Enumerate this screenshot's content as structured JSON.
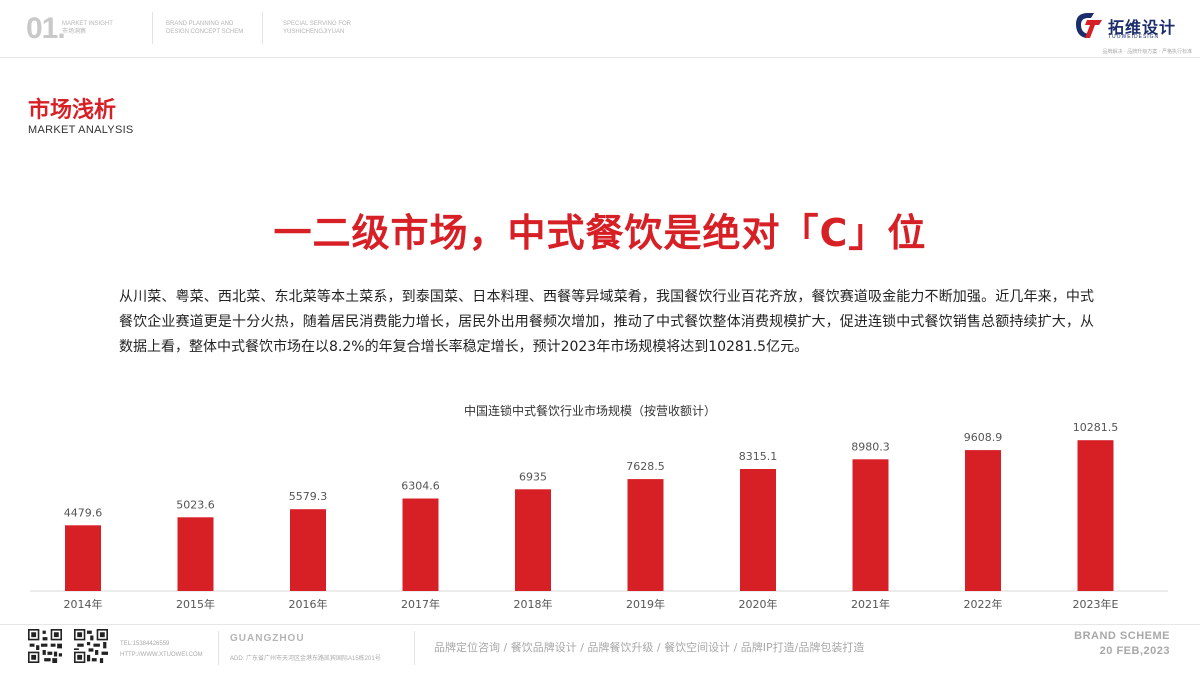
{
  "header": {
    "page_number": "01.",
    "cells": [
      {
        "line1": "MARKET INSIGHT",
        "line2": "市场洞察"
      },
      {
        "line1": "BRAND PLANNING AND",
        "line2": "DESIGN CONCEPT SCHEM"
      },
      {
        "line1": "SPECIAL SERVING FOR",
        "line2": "YUSHICHENGJIYUAN"
      }
    ],
    "logo": {
      "name": "拓维设计",
      "sub": "TUOWEIDESIGN",
      "slogan": "品牌解决 · 品牌升级方案 · 严格执行标准"
    }
  },
  "section": {
    "title": "市场浅析",
    "subtitle": "MARKET ANALYSIS"
  },
  "headline": "一二级市场，中式餐饮是绝对「C」位",
  "body_text": "从川菜、粤菜、西北菜、东北菜等本土菜系，到泰国菜、日本料理、西餐等异域菜肴，我国餐饮行业百花齐放，餐饮赛道吸金能力不断加强。近几年来，中式餐饮企业赛道更是十分火热，随着居民消费能力增长，居民外出用餐频次增加，推动了中式餐饮整体消费规模扩大，促进连锁中式餐饮销售总额持续扩大，从数据上看，整体中式餐饮市场在以8.2%的年复合增长率稳定增长，预计2023年市场规模将达到10281.5亿元。",
  "chart_data": {
    "type": "bar",
    "title": "中国连锁中式餐饮行业市场规模（按营收额计）",
    "categories": [
      "2014年",
      "2015年",
      "2016年",
      "2017年",
      "2018年",
      "2019年",
      "2020年",
      "2021年",
      "2022年",
      "2023年E"
    ],
    "values": [
      4479.6,
      5023.6,
      5579.3,
      6304.6,
      6935,
      7628.5,
      8315.1,
      8980.3,
      9608.9,
      10281.5
    ],
    "value_labels": [
      "4479.6",
      "5023.6",
      "5579.3",
      "6304.6",
      "6935",
      "7628.5",
      "8315.1",
      "8980.3",
      "9608.9",
      "10281.5"
    ],
    "ylim": [
      0,
      12000
    ],
    "bar_color": "#d71f26",
    "grid": false,
    "legend": "none"
  },
  "footer": {
    "tel": "TEL:15384426559",
    "web": "HTTP://WWW.XTUOWEI.COM",
    "city": "GUANGZHOU",
    "address": "ADD: 广东省广州市天河区金港东路凯宾国际A15栋201号",
    "services": "品牌定位咨询 / 餐饮品牌设计 / 品牌餐饮升级 / 餐饮空间设计 / 品牌IP打造/品牌包装打造",
    "brand_line1": "BRAND SCHEME",
    "brand_line2": "20 FEB,2023"
  },
  "colors": {
    "accent": "#d71f26",
    "navy": "#1b2d6b",
    "muted": "#a8a8a8"
  },
  "icons": [
    "qr-code-icon",
    "tuowei-logo-icon"
  ]
}
